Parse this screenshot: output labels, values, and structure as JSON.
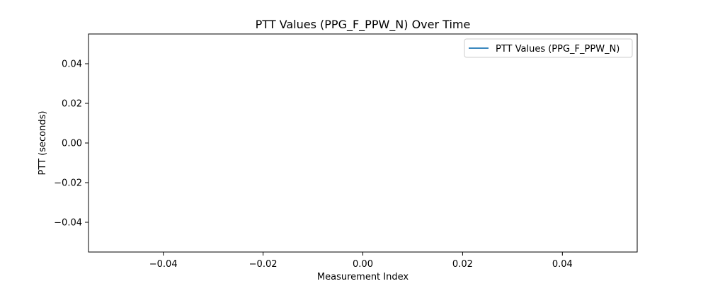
{
  "chart_data": {
    "type": "line",
    "title": "PTT Values (PPG_F_PPW_N) Over Time",
    "xlabel": "Measurement Index",
    "ylabel": "PTT (seconds)",
    "xlim": [
      -0.055,
      0.055
    ],
    "ylim": [
      -0.055,
      0.055
    ],
    "xticks": [
      -0.04,
      -0.02,
      0.0,
      0.02,
      0.04
    ],
    "yticks": [
      -0.04,
      -0.02,
      0.0,
      0.02,
      0.04
    ],
    "xtick_labels": [
      "−0.04",
      "−0.02",
      "0.00",
      "0.02",
      "0.04"
    ],
    "ytick_labels": [
      "−0.04",
      "−0.02",
      "0.00",
      "0.02",
      "0.04"
    ],
    "grid": false,
    "legend_position": "top-right",
    "series": [
      {
        "name": "PTT Values (PPG_F_PPW_N)",
        "color": "#1f77b4",
        "x": [],
        "y": []
      }
    ]
  }
}
